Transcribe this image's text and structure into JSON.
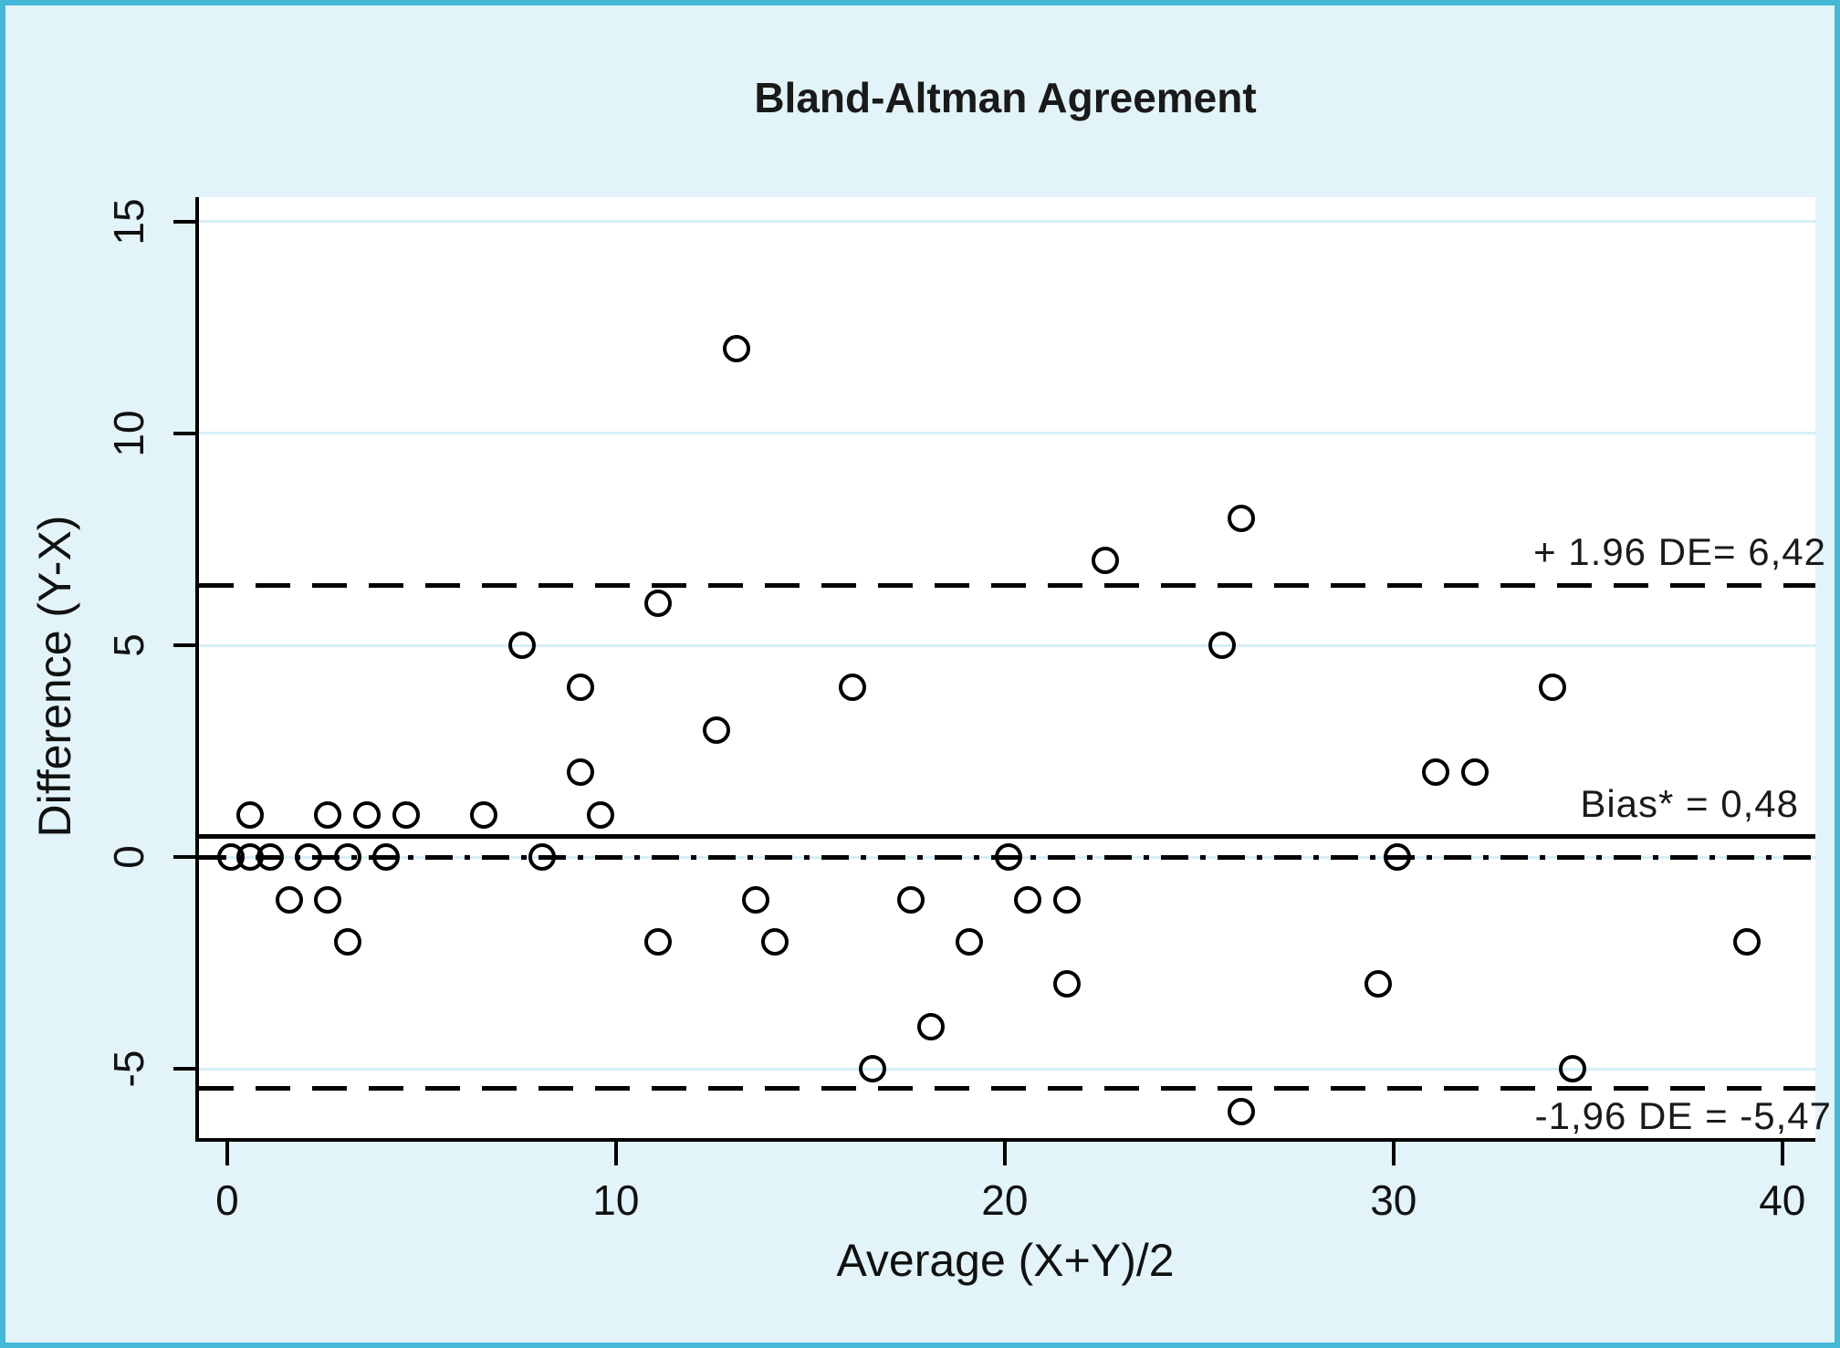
{
  "colors": {
    "page_background": "#e2f4f9",
    "frame_border": "#45b8d8",
    "plot_background": "#ffffff",
    "axis_and_marker": "#000000",
    "gridline": "#d5eff7",
    "text": "#1a1a1a"
  },
  "chart_data": {
    "type": "scatter",
    "title": "Bland-Altman Agreement",
    "xlabel": "Average (X+Y)/2",
    "ylabel": "Difference (Y-X)",
    "xlim": [
      -0.82,
      40.85
    ],
    "ylim": [
      -6.72,
      15.58
    ],
    "xticks": [
      0,
      10,
      20,
      30,
      40
    ],
    "yticks": [
      15,
      10,
      5,
      0,
      -5
    ],
    "grid": "horizontal pale-cyan lines at y tick values",
    "legend": "none",
    "marker": "hollow-circle",
    "points": [
      [
        0,
        0
      ],
      [
        0.5,
        0
      ],
      [
        0.5,
        1
      ],
      [
        1,
        0
      ],
      [
        1.5,
        -1
      ],
      [
        2,
        0
      ],
      [
        2.5,
        1
      ],
      [
        2.5,
        -1
      ],
      [
        3,
        0
      ],
      [
        3,
        -2
      ],
      [
        3.5,
        1
      ],
      [
        4,
        0
      ],
      [
        4.5,
        1
      ],
      [
        6.5,
        1
      ],
      [
        7.5,
        5
      ],
      [
        8,
        0
      ],
      [
        9,
        2
      ],
      [
        9,
        4
      ],
      [
        9.5,
        1
      ],
      [
        11,
        6
      ],
      [
        11,
        -2
      ],
      [
        12.5,
        3
      ],
      [
        13,
        12
      ],
      [
        13.5,
        -1
      ],
      [
        14,
        -2
      ],
      [
        16,
        4
      ],
      [
        16.5,
        -5
      ],
      [
        17.5,
        -1
      ],
      [
        18,
        -4
      ],
      [
        19,
        -2
      ],
      [
        20,
        0
      ],
      [
        20.5,
        -1
      ],
      [
        21.5,
        -1
      ],
      [
        21.5,
        -3
      ],
      [
        22.5,
        7
      ],
      [
        25.5,
        5
      ],
      [
        26,
        8
      ],
      [
        26,
        -6
      ],
      [
        29.5,
        -3
      ],
      [
        30,
        0
      ],
      [
        31,
        2
      ],
      [
        32,
        2
      ],
      [
        34,
        4
      ],
      [
        34.5,
        -5
      ],
      [
        39,
        -2
      ]
    ],
    "lines": [
      {
        "name": "upper-loa",
        "y": 6.42,
        "style": "dashed",
        "label": "+ 1.96 DE= 6,42",
        "label_position": "above"
      },
      {
        "name": "bias",
        "y": 0.48,
        "style": "solid",
        "label": "Bias* = 0,48",
        "label_position": "above"
      },
      {
        "name": "zero",
        "y": 0,
        "style": "dashdot",
        "label": "",
        "label_position": "none"
      },
      {
        "name": "lower-loa",
        "y": -5.47,
        "style": "dashed",
        "label": "-1,96 DE = -5,47",
        "label_position": "below"
      }
    ]
  }
}
